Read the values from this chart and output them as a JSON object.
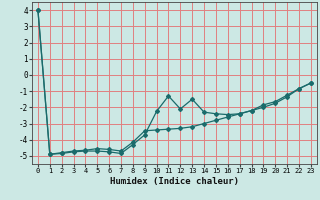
{
  "xlabel": "Humidex (Indice chaleur)",
  "xlim": [
    -0.5,
    23.5
  ],
  "ylim": [
    -5.5,
    4.5
  ],
  "xticks": [
    0,
    1,
    2,
    3,
    4,
    5,
    6,
    7,
    8,
    9,
    10,
    11,
    12,
    13,
    14,
    15,
    16,
    17,
    18,
    19,
    20,
    21,
    22,
    23
  ],
  "yticks": [
    -5,
    -4,
    -3,
    -2,
    -1,
    0,
    1,
    2,
    3,
    4
  ],
  "bg_color": "#cce8e4",
  "grid_color": "#e08080",
  "line_color": "#1a6b6b",
  "line1_x": [
    0,
    1,
    2,
    3,
    4,
    5,
    6,
    7,
    8,
    9,
    10,
    11,
    12,
    13,
    14,
    15,
    16,
    17,
    18,
    19,
    20,
    21,
    22,
    23
  ],
  "line1_y": [
    4.0,
    -4.9,
    -4.85,
    -4.75,
    -4.7,
    -4.7,
    -4.75,
    -4.85,
    -4.3,
    -3.7,
    -2.25,
    -1.3,
    -2.1,
    -1.5,
    -2.3,
    -2.4,
    -2.45,
    -2.4,
    -2.2,
    -1.85,
    -1.65,
    -1.25,
    -0.85,
    -0.5
  ],
  "line2_x": [
    0,
    1,
    2,
    3,
    4,
    5,
    6,
    7,
    8,
    9,
    10,
    11,
    12,
    13,
    14,
    15,
    16,
    17,
    18,
    19,
    20,
    21,
    22,
    23
  ],
  "line2_y": [
    4.0,
    -4.9,
    -4.8,
    -4.7,
    -4.65,
    -4.55,
    -4.6,
    -4.7,
    -4.15,
    -3.45,
    -3.4,
    -3.35,
    -3.3,
    -3.2,
    -3.0,
    -2.8,
    -2.6,
    -2.4,
    -2.2,
    -2.0,
    -1.75,
    -1.35,
    -0.85,
    -0.5
  ]
}
